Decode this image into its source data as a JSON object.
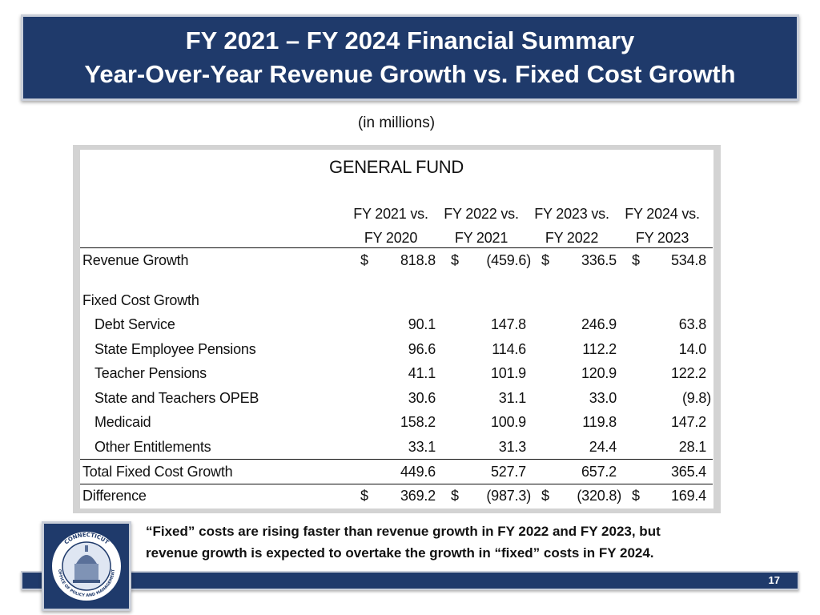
{
  "title": {
    "line1": "FY 2021 – FY 2024 Financial Summary",
    "line2": "Year-Over-Year Revenue Growth vs. Fixed Cost Growth"
  },
  "units_note": "(in millions)",
  "table": {
    "fund_title": "GENERAL FUND",
    "columns": [
      {
        "line1": "FY 2021 vs.",
        "line2": "FY 2020"
      },
      {
        "line1": "FY 2022 vs.",
        "line2": "FY 2021"
      },
      {
        "line1": "FY 2023 vs.",
        "line2": "FY 2022"
      },
      {
        "line1": "FY 2024 vs.",
        "line2": "FY 2023"
      }
    ],
    "currency_symbol": "$",
    "revenue_growth": {
      "label": "Revenue Growth",
      "values": [
        "818.8",
        "(459.6)",
        "336.5",
        "534.8"
      ]
    },
    "fixed_cost_heading": "Fixed Cost Growth",
    "fixed_cost_items": [
      {
        "label": "Debt Service",
        "values": [
          "90.1",
          "147.8",
          "246.9",
          "63.8"
        ]
      },
      {
        "label": "State Employee Pensions",
        "values": [
          "96.6",
          "114.6",
          "112.2",
          "14.0"
        ]
      },
      {
        "label": "Teacher Pensions",
        "values": [
          "41.1",
          "101.9",
          "120.9",
          "122.2"
        ]
      },
      {
        "label": "State and Teachers OPEB",
        "values": [
          "30.6",
          "31.1",
          "33.0",
          "(9.8)"
        ]
      },
      {
        "label": "Medicaid",
        "values": [
          "158.2",
          "100.9",
          "119.8",
          "147.2"
        ]
      },
      {
        "label": "Other Entitlements",
        "values": [
          "33.1",
          "31.3",
          "24.4",
          "28.1"
        ]
      }
    ],
    "total_fixed": {
      "label": "Total Fixed Cost Growth",
      "values": [
        "449.6",
        "527.7",
        "657.2",
        "365.4"
      ]
    },
    "difference": {
      "label": "Difference",
      "values": [
        "369.2",
        "(987.3)",
        "(320.8)",
        "169.4"
      ]
    }
  },
  "footer": {
    "text_line1": "“Fixed” costs are rising faster than revenue growth in FY 2022 and FY 2023, but",
    "text_line2": "revenue growth is expected to overtake the growth in “fixed” costs in FY 2024.",
    "page_number": "17"
  },
  "seal": {
    "top_text": "CONNECTICUT",
    "ring_text": "OFFICE OF POLICY AND MANAGEMENT"
  },
  "colors": {
    "banner": "#1f3a6b",
    "frame": "#d3d3d3"
  }
}
